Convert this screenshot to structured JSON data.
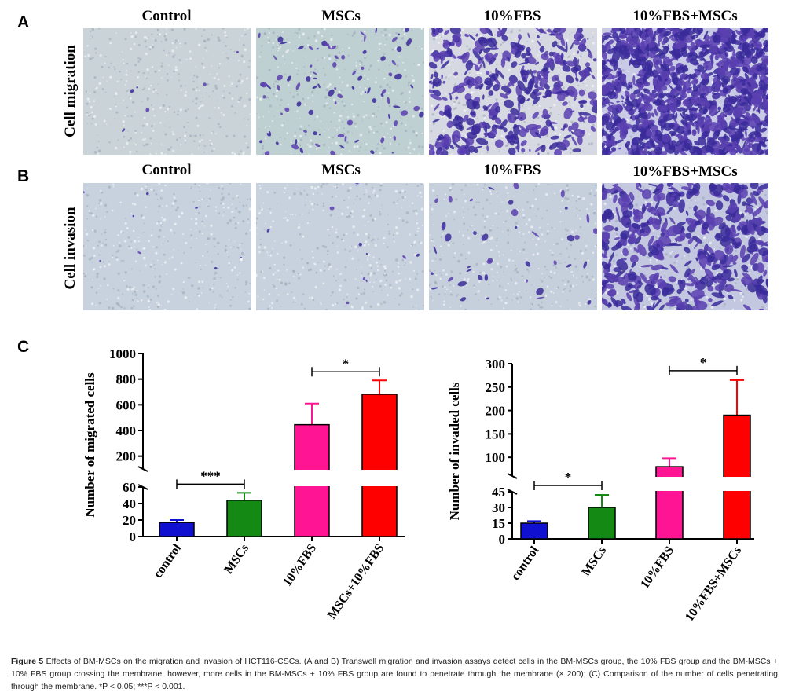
{
  "panels": {
    "a_label": "A",
    "b_label": "B",
    "c_label": "C"
  },
  "migration_row": {
    "row_label": "Cell migration",
    "titles": [
      "Control",
      "MSCs",
      "10%FBS",
      "10%FBS+MSCs"
    ]
  },
  "invasion_row": {
    "row_label": "Cell invasion",
    "titles": [
      "Control",
      "MSCs",
      "10%FBS",
      "10%FBS+MSCs"
    ]
  },
  "colors": {
    "control": "#1010d0",
    "mscs": "#148a14",
    "fbs": "#ff1493",
    "fbs_mscs": "#ff0000",
    "stain": "#5a3fb0",
    "membrane_bg": "#c9d3d8"
  },
  "chart_data": [
    {
      "type": "bar",
      "ylabel": "Number of migrated cells",
      "categories": [
        "control",
        "MSCs",
        "10%FBS",
        "MSCs+10%FBS"
      ],
      "values": [
        17,
        44,
        445,
        682
      ],
      "errors": [
        3,
        9,
        165,
        108
      ],
      "axis_break": true,
      "lower_ylim": [
        0,
        60
      ],
      "lower_ticks": [
        "0",
        "20",
        "40",
        "60"
      ],
      "upper_ylim": [
        100,
        1000
      ],
      "upper_ticks": [
        "200",
        "400",
        "600",
        "800",
        "1000"
      ],
      "significance": [
        {
          "from": 0,
          "to": 1,
          "label": "***"
        },
        {
          "from": 2,
          "to": 3,
          "label": "*"
        }
      ]
    },
    {
      "type": "bar",
      "ylabel": "Number of invaded cells",
      "categories": [
        "control",
        "MSCs",
        "10%FBS",
        "10%FBS+MSCs"
      ],
      "values": [
        15,
        30,
        80,
        190
      ],
      "errors": [
        2,
        12,
        18,
        75
      ],
      "axis_break": true,
      "lower_ylim": [
        0,
        45
      ],
      "lower_ticks": [
        "0",
        "15",
        "30",
        "45"
      ],
      "upper_ylim": [
        60,
        300
      ],
      "upper_ticks": [
        "100",
        "150",
        "200",
        "250",
        "300"
      ],
      "significance": [
        {
          "from": 0,
          "to": 1,
          "label": "*"
        },
        {
          "from": 2,
          "to": 3,
          "label": "*"
        }
      ]
    }
  ],
  "caption": {
    "figure_label": "Figure 5",
    "text": " Effects of BM-MSCs on the migration and invasion of HCT116-CSCs. (A and B) Transwell migration and invasion assays detect cells in the BM-MSCs group, the 10% FBS group and the BM-MSCs + 10% FBS group crossing the membrane; however, more cells in the BM-MSCs + 10% FBS group are found to penetrate through the membrane (× 200); (C) Comparison of the number of cells penetrating through the membrane. *P < 0.05; ***P < 0.001."
  }
}
